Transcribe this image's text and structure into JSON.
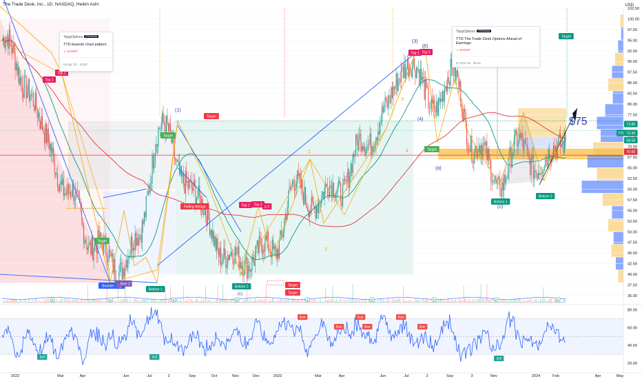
{
  "header": {
    "symbol": "The Trade Desk, Inc., 1D, NASDAQ, Heikin Ashi",
    "currency": "USD"
  },
  "cards": [
    {
      "author": "TopgOptions",
      "badge": "PREMIUM",
      "title": "TTD bearish chart pattern",
      "side": "↘ SHORT",
      "date": "04 Apr '22 · 10:52"
    },
    {
      "author": "TopgOptions",
      "badge": "PREMIUM",
      "title": "TTD The Trade Desk Options Ahead of Earnings",
      "side": "↘ SHORT",
      "date": "07 Nov '23 · 09:14"
    }
  ],
  "chart_data": {
    "type": "candlestick",
    "title": "The Trade Desk, Inc., 1D, NASDAQ, Heikin Ashi",
    "y_axis": {
      "ticks": [
        35.0,
        37.5,
        40.0,
        42.5,
        45.0,
        47.5,
        50.0,
        52.5,
        55.0,
        57.5,
        60.0,
        62.5,
        65.0,
        67.5,
        70.0,
        72.5,
        75.0,
        77.5,
        80.0,
        82.5,
        85.0,
        87.5,
        90.0,
        92.5,
        95.0,
        97.5,
        100.0,
        102.5
      ],
      "ylim": [
        34.5,
        102.5
      ]
    },
    "x_axis": {
      "ticks": [
        "2022",
        "Mar",
        "Apr",
        "Jun",
        "Jul",
        "2",
        "Sep",
        "Oct",
        "Nov",
        "Dec",
        "2023",
        "Mar",
        "Apr",
        "Jun",
        "Jul",
        "2",
        "Sep",
        "3",
        "Nov",
        "2024",
        "Feb",
        "Apr",
        "May"
      ]
    },
    "price_levels": {
      "last": "73.80",
      "ttd_tag": "TTD",
      "ttd_price": "73.49",
      "countdown": "58:58",
      "secondary": "70.00",
      "red_line": 68.0
    },
    "price_path": [
      {
        "date": "2022-01",
        "close": 95
      },
      {
        "date": "2022-02",
        "close": 86
      },
      {
        "date": "2022-03",
        "close": 71
      },
      {
        "date": "2022-04",
        "close": 58
      },
      {
        "date": "2022-05",
        "close": 48
      },
      {
        "date": "2022-06",
        "close": 42
      },
      {
        "date": "2022-07",
        "close": 47
      },
      {
        "date": "2022-08",
        "close": 75
      },
      {
        "date": "2022-09",
        "close": 64
      },
      {
        "date": "2022-10",
        "close": 54
      },
      {
        "date": "2022-11",
        "close": 43
      },
      {
        "date": "2022-12",
        "close": 44
      },
      {
        "date": "2023-01",
        "close": 46
      },
      {
        "date": "2023-02",
        "close": 60
      },
      {
        "date": "2023-03",
        "close": 57
      },
      {
        "date": "2023-04",
        "close": 61
      },
      {
        "date": "2023-05",
        "close": 70
      },
      {
        "date": "2023-06",
        "close": 78
      },
      {
        "date": "2023-07",
        "close": 91
      },
      {
        "date": "2023-08",
        "close": 80
      },
      {
        "date": "2023-09",
        "close": 86
      },
      {
        "date": "2023-10",
        "close": 70
      },
      {
        "date": "2023-11",
        "close": 62
      },
      {
        "date": "2023-12",
        "close": 70
      },
      {
        "date": "2024-01",
        "close": 65
      },
      {
        "date": "2024-02",
        "close": 73
      }
    ],
    "annotations": {
      "top1_a": "Top 1",
      "top2_a": "Top 2",
      "wave1": "(1)",
      "target": "Target",
      "falling_wedge": "Falling Wedge",
      "top1_b": "Top 1",
      "top2_b": "Top 2",
      "top3_b": "p 2",
      "bottom2": "Bottom 2",
      "bottom1": "Bottom 1",
      "bearish_flag": "Bearish Flag",
      "bottom2_cut": "…ttom 2",
      "c_small": "(c)",
      "wave3": "(3)",
      "wave5": "(5)",
      "wave4": "(4)",
      "wave_a": "(a)",
      "wave_c": "(c)",
      "top1_c": "Top 1",
      "top2_c": "Top 2",
      "n1": "1",
      "n2": "2",
      "n3": "3",
      "n4": "4",
      "n5": "5",
      "bottom1_c": "Bottom 1",
      "bottom2_c": "Bottom 2",
      "price_target": "$75"
    },
    "rsi": {
      "ticks": [
        20.0,
        40.0,
        60.0,
        80.0
      ],
      "ylim": [
        10,
        85
      ],
      "band": [
        30,
        70
      ],
      "bear_label": "Bear",
      "bull_label": "Bull"
    }
  },
  "colors": {
    "up": "#26a69a",
    "down": "#ef5350",
    "red_ma": "#e33440",
    "green_ma": "#089981",
    "fib": "#f7a600",
    "trend": "#2962ff",
    "profile_blue": "#2962ff",
    "profile_yellow": "#f7c04a"
  }
}
